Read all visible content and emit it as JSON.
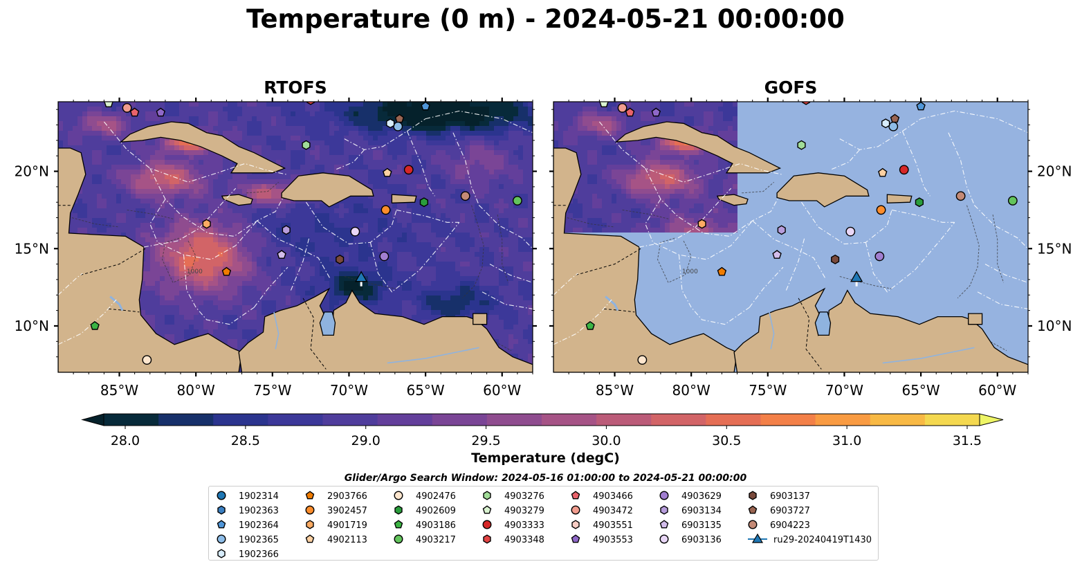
{
  "title": "Temperature (0 m) - 2024-05-21 00:00:00",
  "panels": [
    {
      "title": "RTOFS"
    },
    {
      "title": "GOFS"
    }
  ],
  "map": {
    "lon_range": [
      -89,
      -58
    ],
    "lat_range": [
      7,
      24.5
    ],
    "lon_ticks": [
      "85°W",
      "80°W",
      "75°W",
      "70°W",
      "65°W",
      "60°W"
    ],
    "lat_ticks": [
      "10°N",
      "15°N",
      "20°N"
    ],
    "land_color": "#d2b48c",
    "gofs_mask_color": "#96b3e0",
    "bathymetry_label": "1000"
  },
  "colorbar": {
    "label": "Temperature (degC)",
    "min": 28.0,
    "max": 31.5,
    "ticks": [
      "28.0",
      "28.5",
      "29.0",
      "29.5",
      "30.0",
      "30.5",
      "31.0",
      "31.5"
    ],
    "colors": [
      "#072a3a",
      "#17306a",
      "#2b348e",
      "#3c3899",
      "#4f3d9c",
      "#633f9b",
      "#7a4596",
      "#8f4c8f",
      "#a65386",
      "#bb5b78",
      "#d26467",
      "#e56e55",
      "#f38048",
      "#f99b42",
      "#f8b944",
      "#f4d84f"
    ],
    "under_color": "#05212b",
    "over_color": "#eef566"
  },
  "search_window": "Glider/Argo Search Window: 2024-05-16 01:00:00 to 2024-05-21 00:00:00",
  "legend": [
    {
      "label": "1902314",
      "marker": "circle",
      "color": "#1f77b4"
    },
    {
      "label": "1902363",
      "marker": "hexagon",
      "color": "#3a7fc1"
    },
    {
      "label": "1902364",
      "marker": "pentagon",
      "color": "#5096d8"
    },
    {
      "label": "1902365",
      "marker": "circle",
      "color": "#8ebde8"
    },
    {
      "label": "1902366",
      "marker": "hexagon",
      "color": "#d7ecfb"
    },
    {
      "label": "2903766",
      "marker": "pentagon",
      "color": "#f07c00"
    },
    {
      "label": "3902457",
      "marker": "circle",
      "color": "#fd8d2c"
    },
    {
      "label": "4901719",
      "marker": "hexagon",
      "color": "#fdab63"
    },
    {
      "label": "4902113",
      "marker": "pentagon",
      "color": "#fdd0a2"
    },
    {
      "label": "4902476",
      "marker": "circle",
      "color": "#fee6ce"
    },
    {
      "label": "4902609",
      "marker": "hexagon",
      "color": "#2a9d3c"
    },
    {
      "label": "4903186",
      "marker": "pentagon",
      "color": "#3cb444"
    },
    {
      "label": "4903217",
      "marker": "circle",
      "color": "#63c45c"
    },
    {
      "label": "4903276",
      "marker": "hexagon",
      "color": "#a1dc98"
    },
    {
      "label": "4903279",
      "marker": "pentagon",
      "color": "#d9f2d0"
    },
    {
      "label": "4903333",
      "marker": "circle",
      "color": "#d62728"
    },
    {
      "label": "4903348",
      "marker": "hexagon",
      "color": "#e24444"
    },
    {
      "label": "4903466",
      "marker": "pentagon",
      "color": "#e9636b"
    },
    {
      "label": "4903472",
      "marker": "circle",
      "color": "#f19c8e"
    },
    {
      "label": "4903551",
      "marker": "hexagon",
      "color": "#f9cdc4"
    },
    {
      "label": "4903553",
      "marker": "pentagon",
      "color": "#8f68c8"
    },
    {
      "label": "4903629",
      "marker": "circle",
      "color": "#a17ed0"
    },
    {
      "label": "6903134",
      "marker": "hexagon",
      "color": "#b79ddc"
    },
    {
      "label": "6903135",
      "marker": "pentagon",
      "color": "#d3bdeb"
    },
    {
      "label": "6903136",
      "marker": "circle",
      "color": "#e9d7f7"
    },
    {
      "label": "6903137",
      "marker": "hexagon",
      "color": "#7a4a3c"
    },
    {
      "label": "6903727",
      "marker": "pentagon",
      "color": "#9a6552"
    },
    {
      "label": "6904223",
      "marker": "circle",
      "color": "#c48a76"
    },
    {
      "label": "ru29-20240419T1430",
      "marker": "triangle-line",
      "color": "#1f77b4"
    }
  ],
  "floats": [
    {
      "id": "2903766",
      "lon": -78.0,
      "lat": 13.5
    },
    {
      "id": "4901719",
      "lon": -79.3,
      "lat": 16.6
    },
    {
      "id": "4902113",
      "lon": -67.5,
      "lat": 19.9
    },
    {
      "id": "3902457",
      "lon": -67.6,
      "lat": 17.5
    },
    {
      "id": "4902476",
      "lon": -83.2,
      "lat": 7.8
    },
    {
      "id": "4903186",
      "lon": -86.6,
      "lat": 10.0
    },
    {
      "id": "4902609",
      "lon": -65.1,
      "lat": 18.0
    },
    {
      "id": "4903217",
      "lon": -59.0,
      "lat": 18.1
    },
    {
      "id": "4903276",
      "lon": -72.8,
      "lat": 21.7
    },
    {
      "id": "4903279",
      "lon": -85.7,
      "lat": 24.4
    },
    {
      "id": "4903333",
      "lon": -66.1,
      "lat": 20.1
    },
    {
      "id": "4903348",
      "lon": -72.5,
      "lat": 24.6
    },
    {
      "id": "4903466",
      "lon": -84.0,
      "lat": 23.8
    },
    {
      "id": "4903472",
      "lon": -84.5,
      "lat": 24.1
    },
    {
      "id": "4903553",
      "lon": -82.3,
      "lat": 23.8
    },
    {
      "id": "4903629",
      "lon": -67.7,
      "lat": 14.5
    },
    {
      "id": "6903134",
      "lon": -74.1,
      "lat": 16.2
    },
    {
      "id": "6903135",
      "lon": -74.4,
      "lat": 14.6
    },
    {
      "id": "6903136",
      "lon": -69.6,
      "lat": 16.1
    },
    {
      "id": "6903137",
      "lon": -70.6,
      "lat": 14.3
    },
    {
      "id": "6903727",
      "lon": -66.7,
      "lat": 23.4
    },
    {
      "id": "6904223",
      "lon": -62.4,
      "lat": 18.4
    },
    {
      "id": "1902364",
      "lon": -65.0,
      "lat": 24.2
    },
    {
      "id": "1902365",
      "lon": -66.8,
      "lat": 22.9
    },
    {
      "id": "1902366",
      "lon": -67.3,
      "lat": 23.1
    }
  ],
  "glider": {
    "id": "ru29-20240419T1430",
    "lon": -69.2,
    "lat": 13.1
  }
}
